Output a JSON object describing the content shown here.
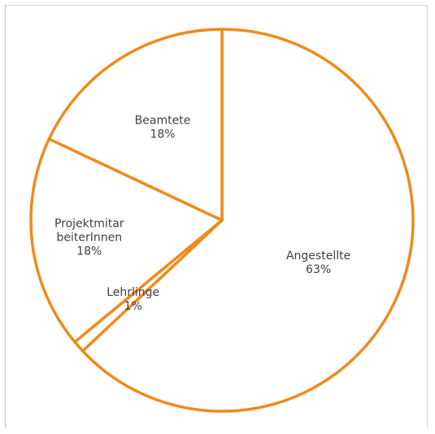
{
  "chart_data": {
    "type": "pie",
    "title": "",
    "slices": [
      {
        "name": "Angestellte",
        "lines": [
          "Angestellte"
        ],
        "value": 63,
        "label": "63%"
      },
      {
        "name": "Lehrlinge",
        "lines": [
          "Lehrlinge"
        ],
        "value": 1,
        "label": "1%"
      },
      {
        "name": "ProjektmitarbeiterInnen",
        "lines": [
          "Projektmitar",
          "beiterInnen"
        ],
        "value": 18,
        "label": "18%"
      },
      {
        "name": "Beamtete",
        "lines": [
          "Beamtete"
        ],
        "value": 18,
        "label": "18%"
      }
    ],
    "start_angle": "12 o'clock",
    "direction": "clockwise",
    "slice_fill": "#ffffff",
    "slice_stroke": "#ee8b1c",
    "label_color": "#404040",
    "legend": "none"
  }
}
